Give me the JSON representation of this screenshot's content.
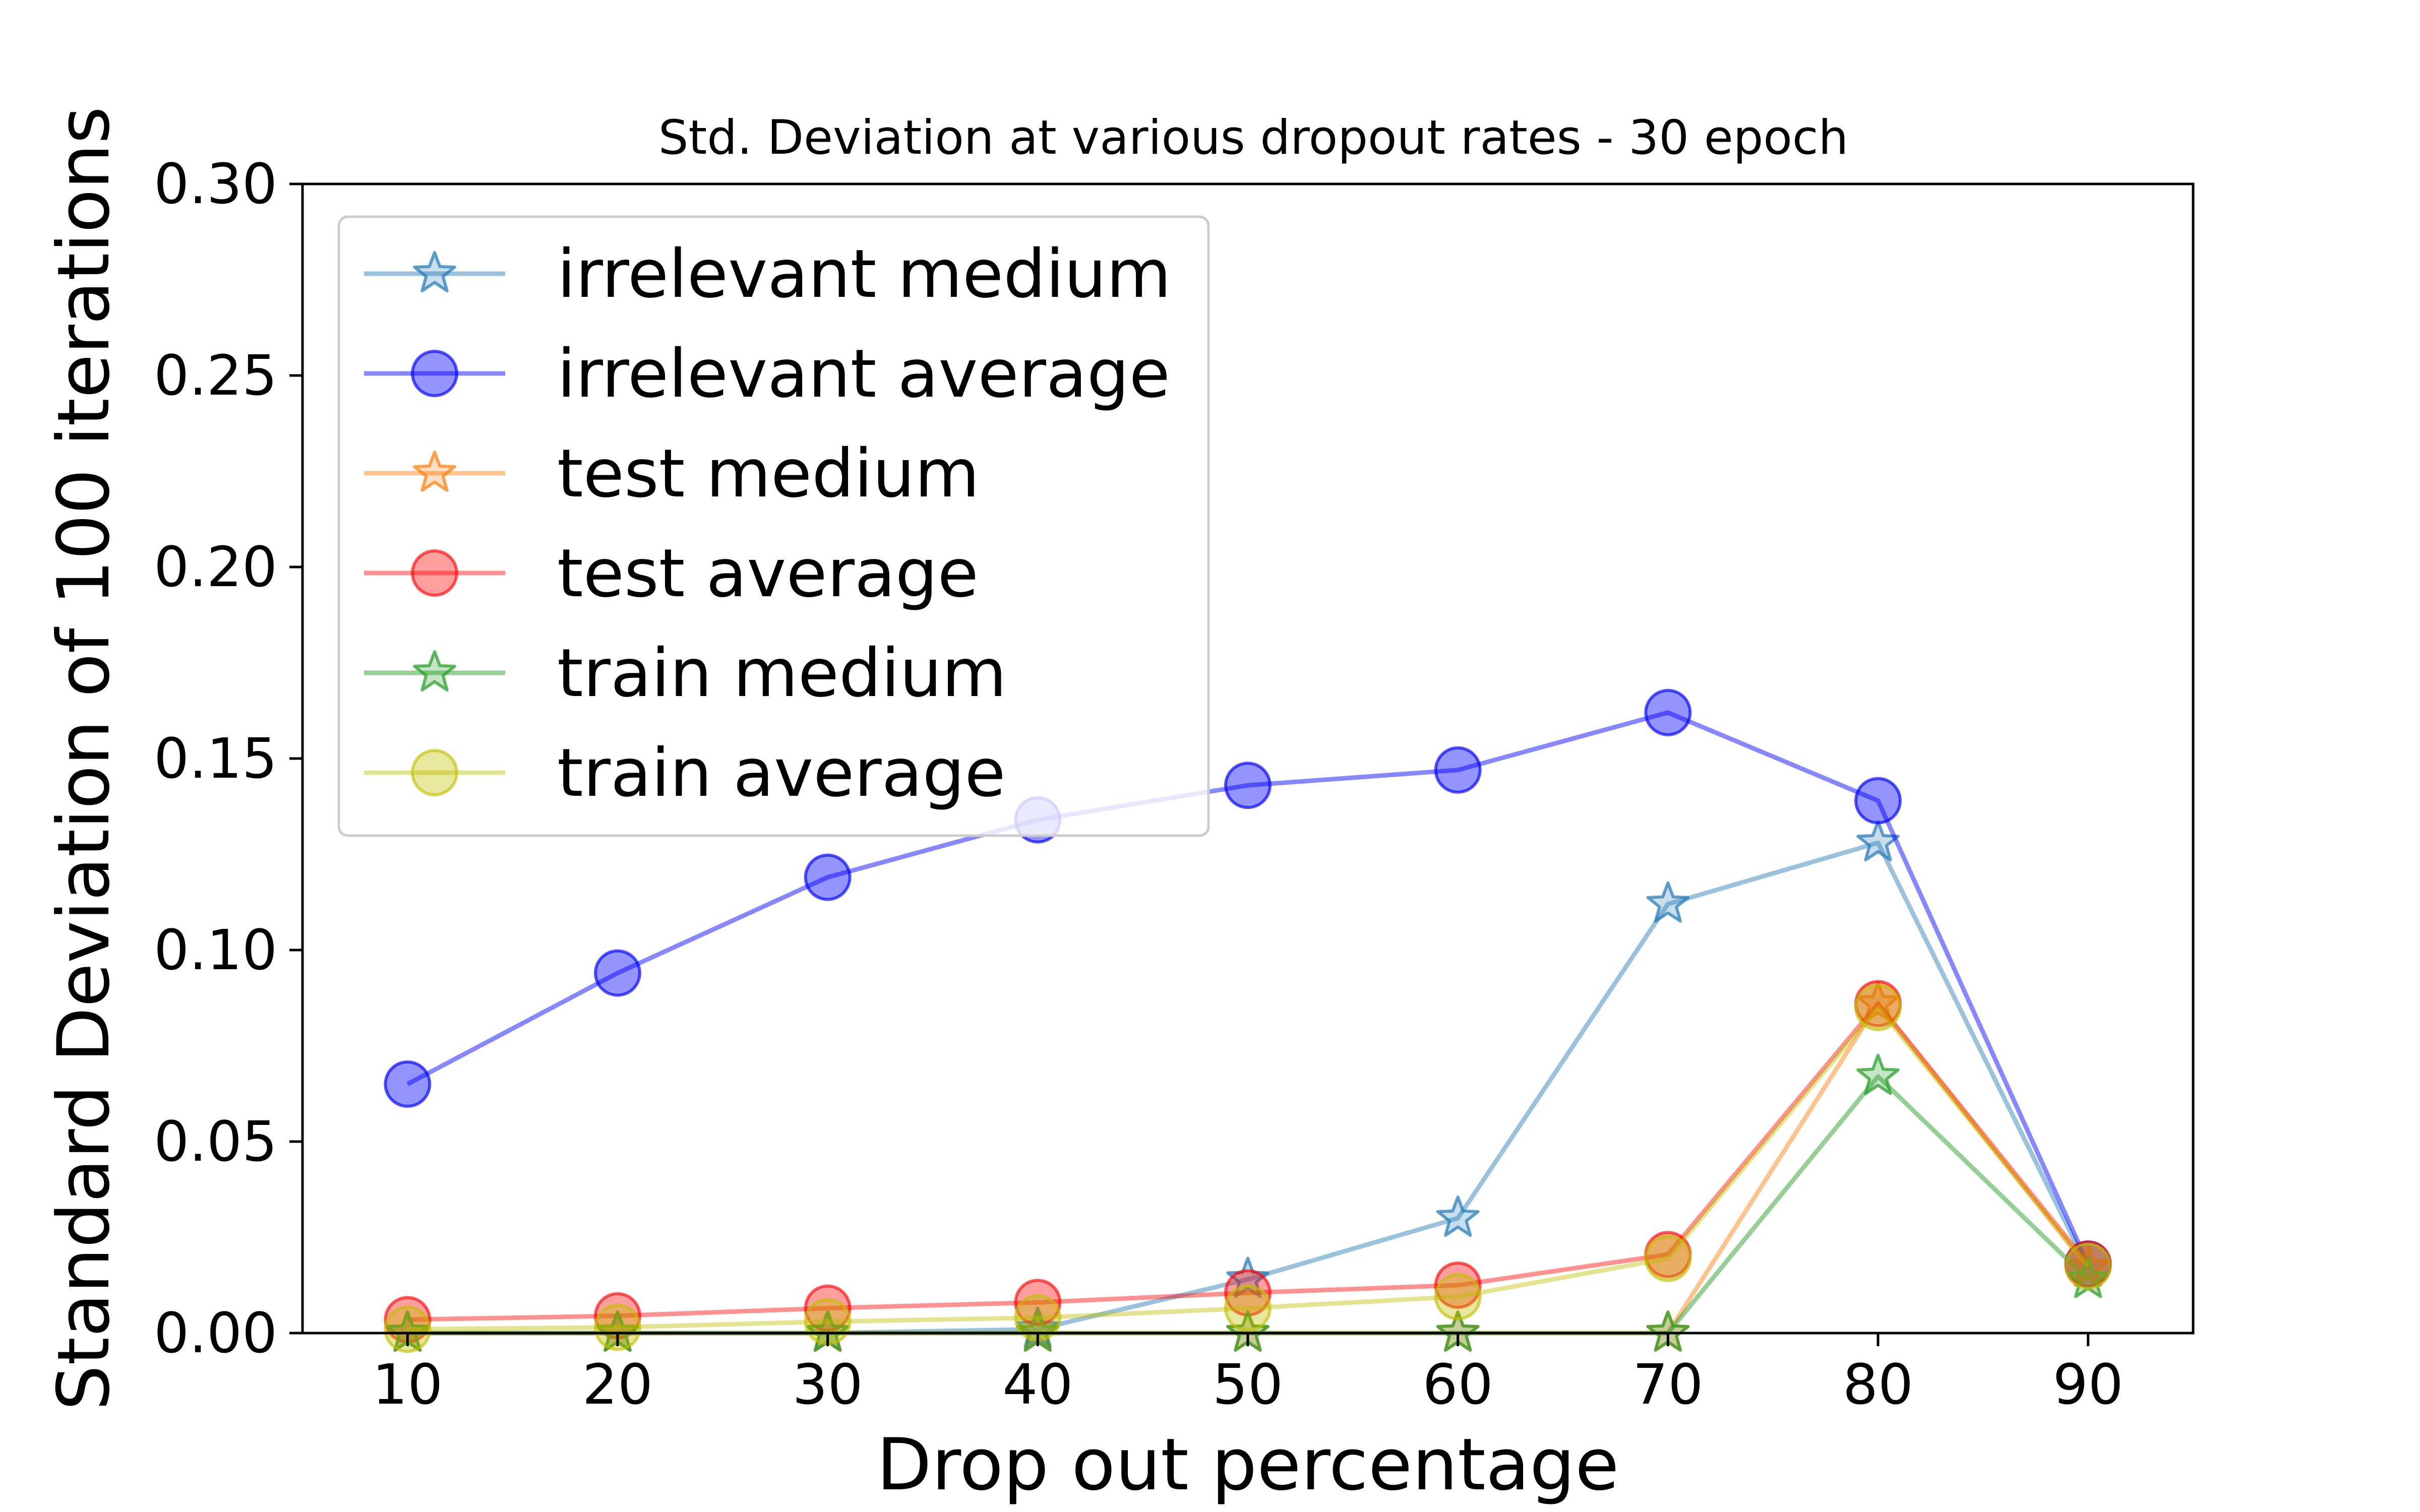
{
  "chart_data": {
    "type": "line",
    "title": "Std. Deviation at various dropout rates - 30 epoch",
    "xlabel": "Drop out percentage",
    "ylabel": "Standard Deviation of 100 iterations",
    "x": [
      10,
      20,
      30,
      40,
      50,
      60,
      70,
      80,
      90
    ],
    "xlim": [
      5,
      95
    ],
    "ylim": [
      0,
      0.3
    ],
    "x_ticks": [
      "10",
      "20",
      "30",
      "40",
      "50",
      "60",
      "70",
      "80",
      "90"
    ],
    "y_ticks": [
      "0.00",
      "0.05",
      "0.10",
      "0.15",
      "0.20",
      "0.25",
      "0.30"
    ],
    "grid": false,
    "legend_position": "upper-left",
    "series": [
      {
        "name": "irrelevant medium",
        "color": "#1f77b4",
        "marker": "star",
        "opacity": 0.4,
        "values": [
          0.0,
          0.0,
          0.0,
          0.001,
          0.014,
          0.03,
          0.112,
          0.128,
          0.017
        ]
      },
      {
        "name": "irrelevant average",
        "color": "#0000ff",
        "marker": "circle",
        "opacity": 0.42,
        "values": [
          0.065,
          0.094,
          0.119,
          0.134,
          0.143,
          0.147,
          0.162,
          0.139,
          0.018
        ]
      },
      {
        "name": "test medium",
        "color": "#ff7f0e",
        "marker": "star",
        "opacity": 0.42,
        "values": [
          0.0,
          0.0,
          0.0,
          0.0,
          0.0,
          0.0,
          0.0,
          0.086,
          0.017
        ]
      },
      {
        "name": "test average",
        "color": "#ff0000",
        "marker": "circle",
        "opacity": 0.38,
        "values": [
          0.0035,
          0.0045,
          0.0065,
          0.008,
          0.0105,
          0.0125,
          0.0205,
          0.086,
          0.018
        ]
      },
      {
        "name": "train medium",
        "color": "#2ca02c",
        "marker": "star",
        "opacity": 0.45,
        "values": [
          0.0,
          0.0,
          0.0,
          0.0,
          0.0,
          0.0,
          0.0,
          0.067,
          0.014
        ]
      },
      {
        "name": "train average",
        "color": "#bfbf00",
        "marker": "circle",
        "opacity": 0.38,
        "values": [
          0.001,
          0.0015,
          0.003,
          0.004,
          0.0065,
          0.0095,
          0.0195,
          0.085,
          0.0175
        ]
      }
    ]
  }
}
